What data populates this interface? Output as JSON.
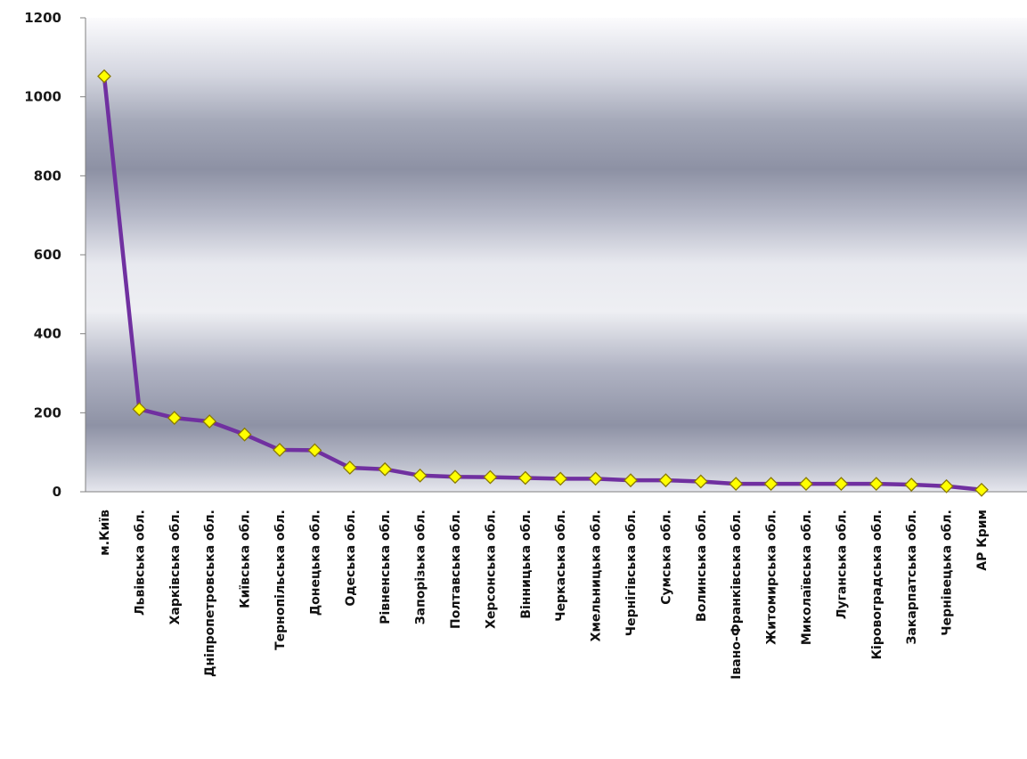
{
  "chart_data": {
    "type": "line",
    "title": "",
    "xlabel": "",
    "ylabel": "",
    "ylim": [
      0,
      1200
    ],
    "yticks": [
      0,
      200,
      400,
      600,
      800,
      1000,
      1200
    ],
    "grid": false,
    "legend": "none",
    "categories": [
      "м.Київ",
      "Львівська  обл.",
      "Харківська  обл.",
      "Дніпропетровська  обл.",
      "Київська  обл.",
      "Тернопільська  обл.",
      "Донецька обл.",
      "Одеська обл.",
      "Рівненська  обл.",
      "Запорізька  обл.",
      "Полтавська  обл.",
      "Херсонська  обл.",
      "Вінницька  обл.",
      "Черкаська  обл.",
      "Хмельницька  обл.",
      "Чернігівська  обл.",
      "Сумська  обл.",
      "Волинська  обл.",
      "Івано-Франківська  обл.",
      "Житомирська  обл.",
      "Миколаївська  обл.",
      "Луганська  обл.",
      "Кіровоградська  обл.",
      "Закарпатська  обл.",
      "Чернівецька  обл.",
      "АР Крим"
    ],
    "series": [
      {
        "values": [
          1052,
          209,
          187,
          178,
          145,
          106,
          105,
          61,
          57,
          41,
          38,
          37,
          35,
          33,
          33,
          29,
          29,
          26,
          20,
          20,
          20,
          20,
          20,
          18,
          14,
          5
        ],
        "line_color": "#7030a0",
        "marker_fill": "#ffff00",
        "marker_stroke": "#8a7a00",
        "marker": "diamond"
      }
    ]
  }
}
